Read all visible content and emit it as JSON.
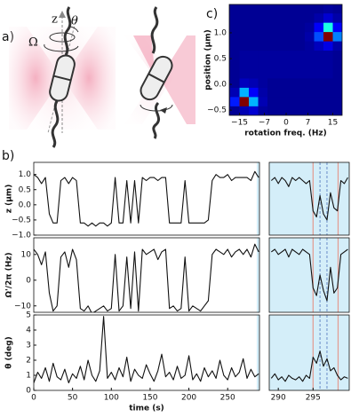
{
  "panel_labels": [
    "a)",
    "b)",
    "c)"
  ],
  "diagram": {
    "axis": "z",
    "angle": "θ",
    "rotation": "Ω"
  },
  "chart_data": [
    {
      "type": "heatmap",
      "xlabel": "rotation freq. (Hz)",
      "ylabel": "position (μm)",
      "x": [
        -16.5,
        -13.5,
        -10.5,
        -7.5,
        -4.5,
        -1.5,
        1.5,
        4.5,
        7.5,
        10.5,
        13.5,
        16.5
      ],
      "y": [
        -0.51,
        -0.33,
        -0.15,
        0.03,
        0.21,
        0.39,
        0.57,
        0.75,
        0.93,
        1.11,
        1.29,
        1.47
      ],
      "z": [
        [
          2,
          5,
          8,
          3,
          2,
          2,
          2,
          2,
          2,
          2,
          2,
          2
        ],
        [
          15,
          100,
          30,
          5,
          2,
          2,
          2,
          2,
          2,
          2,
          2,
          2
        ],
        [
          5,
          30,
          12,
          4,
          2,
          2,
          2,
          2,
          2,
          2,
          2,
          2
        ],
        [
          2,
          6,
          5,
          3,
          2,
          2,
          2,
          2,
          2,
          2,
          2,
          2
        ],
        [
          2,
          3,
          3,
          3,
          3,
          3,
          3,
          3,
          3,
          3,
          3,
          2
        ],
        [
          2,
          3,
          3,
          3,
          3,
          3,
          3,
          3,
          3,
          3,
          3,
          2
        ],
        [
          2,
          3,
          3,
          3,
          3,
          3,
          3,
          3,
          3,
          3,
          3,
          2
        ],
        [
          2,
          2,
          2,
          2,
          2,
          2,
          2,
          2,
          3,
          6,
          10,
          4
        ],
        [
          2,
          2,
          2,
          2,
          2,
          2,
          2,
          2,
          4,
          20,
          100,
          25
        ],
        [
          2,
          2,
          2,
          2,
          2,
          2,
          2,
          2,
          3,
          12,
          40,
          12
        ],
        [
          2,
          2,
          2,
          2,
          2,
          2,
          2,
          2,
          2,
          4,
          8,
          4
        ],
        [
          2,
          2,
          2,
          2,
          2,
          2,
          2,
          2,
          2,
          2,
          3,
          2
        ]
      ],
      "zlim": [
        0,
        100
      ],
      "colormap": "jet",
      "xlim": [
        -18.3,
        18
      ],
      "ylim": [
        -0.6,
        1.55
      ],
      "xticks": [
        {
          "value": -15,
          "label": "−15"
        },
        {
          "value": -7,
          "label": "−7"
        },
        0,
        7,
        15
      ],
      "yticks": [
        {
          "value": -0.5,
          "label": "−0.5"
        },
        {
          "value": 0,
          "label": "0.0"
        },
        {
          "value": 0.5,
          "label": "0.5"
        },
        {
          "value": 1,
          "label": "1.0"
        }
      ]
    },
    {
      "type": "line",
      "ylabel": "z (μm)",
      "color": "#111111",
      "highlight": [
        287.5,
        291
      ],
      "highlight_color": "#d4eef9",
      "x": [
        0,
        5,
        10,
        15,
        20,
        25,
        30,
        35,
        40,
        45,
        50,
        55,
        60,
        65,
        70,
        75,
        80,
        85,
        90,
        95,
        100,
        105,
        110,
        115,
        120,
        125,
        130,
        135,
        140,
        145,
        150,
        155,
        160,
        165,
        170,
        175,
        180,
        185,
        190,
        195,
        200,
        205,
        210,
        215,
        220,
        225,
        230,
        235,
        240,
        245,
        250,
        255,
        260,
        265,
        270,
        275,
        280,
        285,
        290
      ],
      "values": [
        1.0,
        0.9,
        0.7,
        0.9,
        -0.3,
        -0.6,
        -0.6,
        0.8,
        0.9,
        0.7,
        0.9,
        0.8,
        -0.6,
        -0.6,
        -0.7,
        -0.6,
        -0.7,
        -0.6,
        -0.6,
        -0.7,
        -0.6,
        0.9,
        -0.6,
        -0.6,
        0.8,
        -0.6,
        0.8,
        -0.6,
        0.9,
        0.8,
        0.9,
        0.9,
        0.8,
        0.9,
        0.9,
        -0.6,
        -0.6,
        -0.6,
        -0.6,
        0.8,
        -0.6,
        -0.6,
        -0.6,
        -0.6,
        -0.6,
        -0.5,
        0.8,
        1.0,
        0.9,
        0.9,
        1.0,
        0.8,
        0.9,
        0.9,
        0.9,
        0.9,
        0.8,
        1.1,
        0.9
      ],
      "xlim": [
        0,
        291
      ],
      "ylim": [
        -1.0,
        1.4
      ],
      "yticks": [
        {
          "value": -1,
          "label": "−1.0"
        },
        {
          "value": -0.5,
          "label": "−0.5"
        },
        {
          "value": 0,
          "label": "0.0"
        },
        {
          "value": 0.5,
          "label": "0.5"
        },
        {
          "value": 1,
          "label": "1.0"
        }
      ]
    },
    {
      "type": "line",
      "ylabel": "Ω'/2π (Hz)",
      "color": "#111111",
      "highlight": [
        287.5,
        291
      ],
      "highlight_color": "#d4eef9",
      "x": [
        0,
        5,
        10,
        15,
        20,
        25,
        30,
        35,
        40,
        45,
        50,
        55,
        60,
        65,
        70,
        75,
        80,
        85,
        90,
        95,
        100,
        105,
        110,
        115,
        120,
        125,
        130,
        135,
        140,
        145,
        150,
        155,
        160,
        165,
        170,
        175,
        180,
        185,
        190,
        195,
        200,
        205,
        210,
        215,
        220,
        225,
        230,
        235,
        240,
        245,
        250,
        255,
        260,
        265,
        270,
        275,
        280,
        285,
        290
      ],
      "values": [
        12,
        10,
        6,
        11,
        -5,
        -12,
        -10,
        9,
        11,
        5,
        12,
        8,
        -11,
        -12,
        -10,
        -13,
        -12,
        -11,
        -10,
        -12,
        -11,
        10,
        -12,
        -10,
        9,
        -11,
        11,
        -12,
        12,
        10,
        11,
        12,
        8,
        11,
        12,
        -11,
        -10,
        -12,
        -11,
        9,
        -12,
        -10,
        -11,
        -12,
        -10,
        -8,
        10,
        12,
        11,
        10,
        12,
        9,
        11,
        12,
        10,
        12,
        9,
        14,
        11
      ],
      "xlim": [
        0,
        291
      ],
      "ylim": [
        -12.5,
        16.5
      ],
      "yticks": [
        {
          "value": -10,
          "label": "−10"
        },
        0,
        10
      ]
    },
    {
      "type": "line",
      "ylabel": "θ (deg)",
      "xlabel": "time (s)",
      "color": "#111111",
      "highlight": [
        287.5,
        291
      ],
      "highlight_color": "#d4eef9",
      "x": [
        0,
        5,
        10,
        15,
        20,
        25,
        30,
        35,
        40,
        45,
        50,
        55,
        60,
        65,
        70,
        75,
        80,
        85,
        90,
        95,
        100,
        105,
        110,
        115,
        120,
        125,
        130,
        135,
        140,
        145,
        150,
        155,
        160,
        165,
        170,
        175,
        180,
        185,
        190,
        195,
        200,
        205,
        210,
        215,
        220,
        225,
        230,
        235,
        240,
        245,
        250,
        255,
        260,
        265,
        270,
        275,
        280,
        285,
        290
      ],
      "values": [
        0.5,
        1.2,
        0.8,
        1.5,
        0.6,
        1.8,
        0.9,
        0.7,
        1.4,
        0.5,
        1.1,
        0.8,
        1.6,
        0.7,
        2.0,
        1.0,
        0.6,
        1.3,
        4.9,
        0.8,
        1.2,
        0.7,
        1.5,
        0.9,
        2.2,
        0.6,
        1.4,
        1.0,
        0.8,
        1.7,
        1.1,
        0.6,
        1.3,
        2.4,
        0.9,
        1.2,
        0.7,
        1.6,
        0.8,
        1.0,
        2.3,
        0.7,
        1.1,
        0.6,
        1.5,
        0.9,
        1.3,
        0.8,
        2.0,
        1.0,
        0.7,
        1.5,
        0.9,
        1.2,
        2.1,
        0.8,
        1.4,
        0.9,
        1.1
      ],
      "xlim": [
        0,
        291
      ],
      "ylim": [
        0,
        5
      ],
      "xticks": [
        0,
        50,
        100,
        150,
        200,
        250
      ],
      "yticks": [
        0,
        1,
        2,
        3,
        4,
        5
      ]
    },
    {
      "type": "line",
      "color": "#111111",
      "background": "#d4eef9",
      "vlines": [
        {
          "value": 295,
          "color": "#e39a8f",
          "dash": false
        },
        {
          "value": 296,
          "color": "#7a9ccf",
          "dash": true
        },
        {
          "value": 297,
          "color": "#7a9ccf",
          "dash": true
        },
        {
          "value": 298.6,
          "color": "#e39a8f",
          "dash": false
        }
      ],
      "x": [
        289,
        289.5,
        290,
        290.5,
        291,
        291.5,
        292,
        292.5,
        293,
        293.5,
        294,
        294.5,
        295,
        295.5,
        296,
        296.5,
        297,
        297.5,
        298,
        298.5,
        299,
        299.5,
        300
      ],
      "values": [
        0.8,
        0.9,
        0.7,
        0.9,
        0.8,
        0.6,
        0.9,
        0.8,
        0.9,
        0.8,
        0.7,
        0.8,
        -0.2,
        -0.4,
        0.3,
        -0.3,
        -0.5,
        0.4,
        -0.1,
        -0.2,
        0.8,
        0.7,
        0.9
      ],
      "xlim": [
        288.7,
        300.2
      ],
      "ylim": [
        -1.0,
        1.4
      ]
    },
    {
      "type": "line",
      "color": "#111111",
      "background": "#d4eef9",
      "vlines": [
        {
          "value": 295,
          "color": "#e39a8f",
          "dash": false
        },
        {
          "value": 296,
          "color": "#7a9ccf",
          "dash": true
        },
        {
          "value": 297,
          "color": "#7a9ccf",
          "dash": true
        },
        {
          "value": 298.6,
          "color": "#e39a8f",
          "dash": false
        }
      ],
      "x": [
        289,
        289.5,
        290,
        290.5,
        291,
        291.5,
        292,
        292.5,
        293,
        293.5,
        294,
        294.5,
        295,
        295.5,
        296,
        296.5,
        297,
        297.5,
        298,
        298.5,
        299,
        299.5,
        300
      ],
      "values": [
        11,
        12,
        10,
        11,
        12,
        9,
        12,
        11,
        10,
        12,
        11,
        10,
        -3,
        -6,
        2,
        -4,
        -8,
        5,
        -5,
        -3,
        10,
        11,
        12
      ],
      "xlim": [
        288.7,
        300.2
      ],
      "ylim": [
        -12.5,
        16.5
      ]
    },
    {
      "type": "line",
      "color": "#111111",
      "background": "#d4eef9",
      "vlines": [
        {
          "value": 295,
          "color": "#e39a8f",
          "dash": false
        },
        {
          "value": 296,
          "color": "#7a9ccf",
          "dash": true
        },
        {
          "value": 297,
          "color": "#7a9ccf",
          "dash": true
        },
        {
          "value": 298.6,
          "color": "#e39a8f",
          "dash": false
        }
      ],
      "x": [
        289,
        289.5,
        290,
        290.5,
        291,
        291.5,
        292,
        292.5,
        293,
        293.5,
        294,
        294.5,
        295,
        295.5,
        296,
        296.5,
        297,
        297.5,
        298,
        298.5,
        299,
        299.5,
        300
      ],
      "values": [
        0.8,
        1.1,
        0.7,
        0.9,
        0.6,
        1.0,
        0.8,
        0.7,
        0.9,
        0.6,
        1.0,
        0.8,
        2.2,
        1.8,
        2.6,
        1.6,
        2.1,
        1.3,
        1.5,
        1.0,
        0.7,
        0.9,
        0.8
      ],
      "xlim": [
        288.7,
        300.2
      ],
      "ylim": [
        0,
        5
      ],
      "xticks": [
        290,
        295
      ]
    }
  ]
}
